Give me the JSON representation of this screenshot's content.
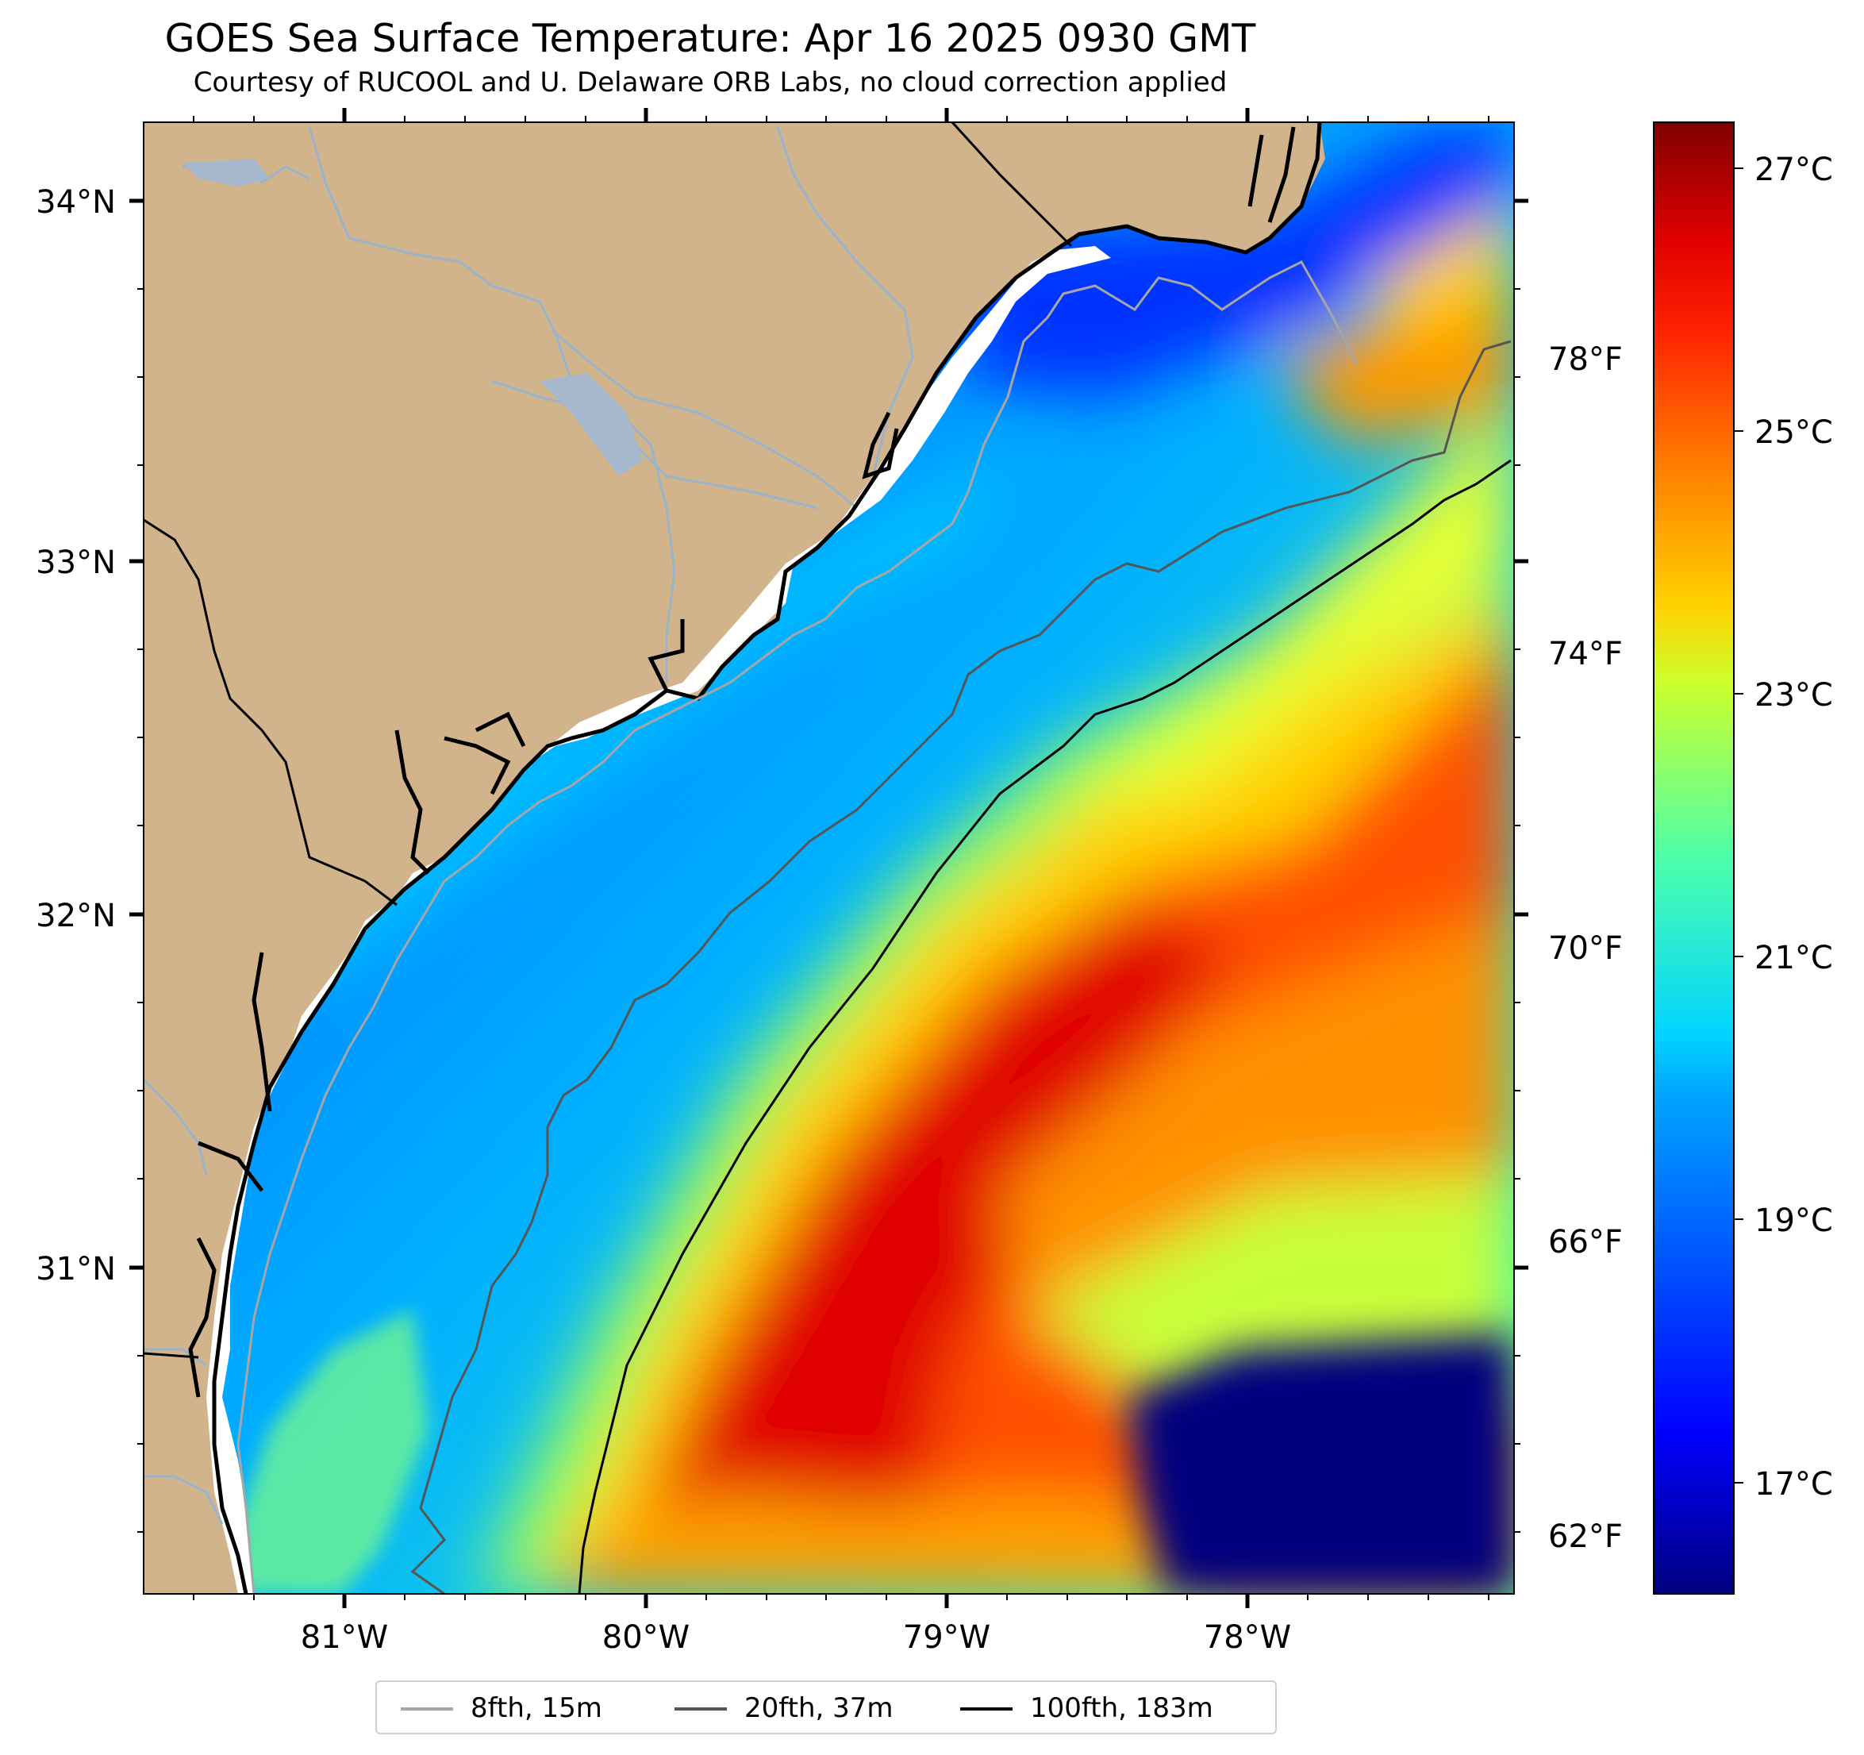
{
  "title": "GOES Sea Surface Temperature: Apr 16 2025 0930 GMT",
  "subtitle": "Courtesy of RUCOOL and U. Delaware ORB Labs, no cloud correction applied",
  "map": {
    "lat_labels": [
      "34°N",
      "33°N",
      "32°N",
      "31°N"
    ],
    "lon_labels": [
      "81°W",
      "80°W",
      "79°W",
      "78°W"
    ],
    "fahrenheit_labels": [
      "78°F",
      "74°F",
      "70°F",
      "66°F",
      "62°F"
    ]
  },
  "colorbar": {
    "labels": [
      "27°C",
      "25°C",
      "23°C",
      "21°C",
      "19°C",
      "17°C"
    ],
    "min_c": 16.3,
    "max_c": 27.5,
    "colormap": "jet"
  },
  "legend": [
    {
      "label": "8fth, 15m",
      "color": "#a6a6a6"
    },
    {
      "label": "20fth, 37m",
      "color": "#555555"
    },
    {
      "label": "100fth, 183m",
      "color": "#000000"
    }
  ],
  "colors": {
    "land": "#d2b48c",
    "river": "#9ab3cc",
    "coast": "#000000"
  }
}
